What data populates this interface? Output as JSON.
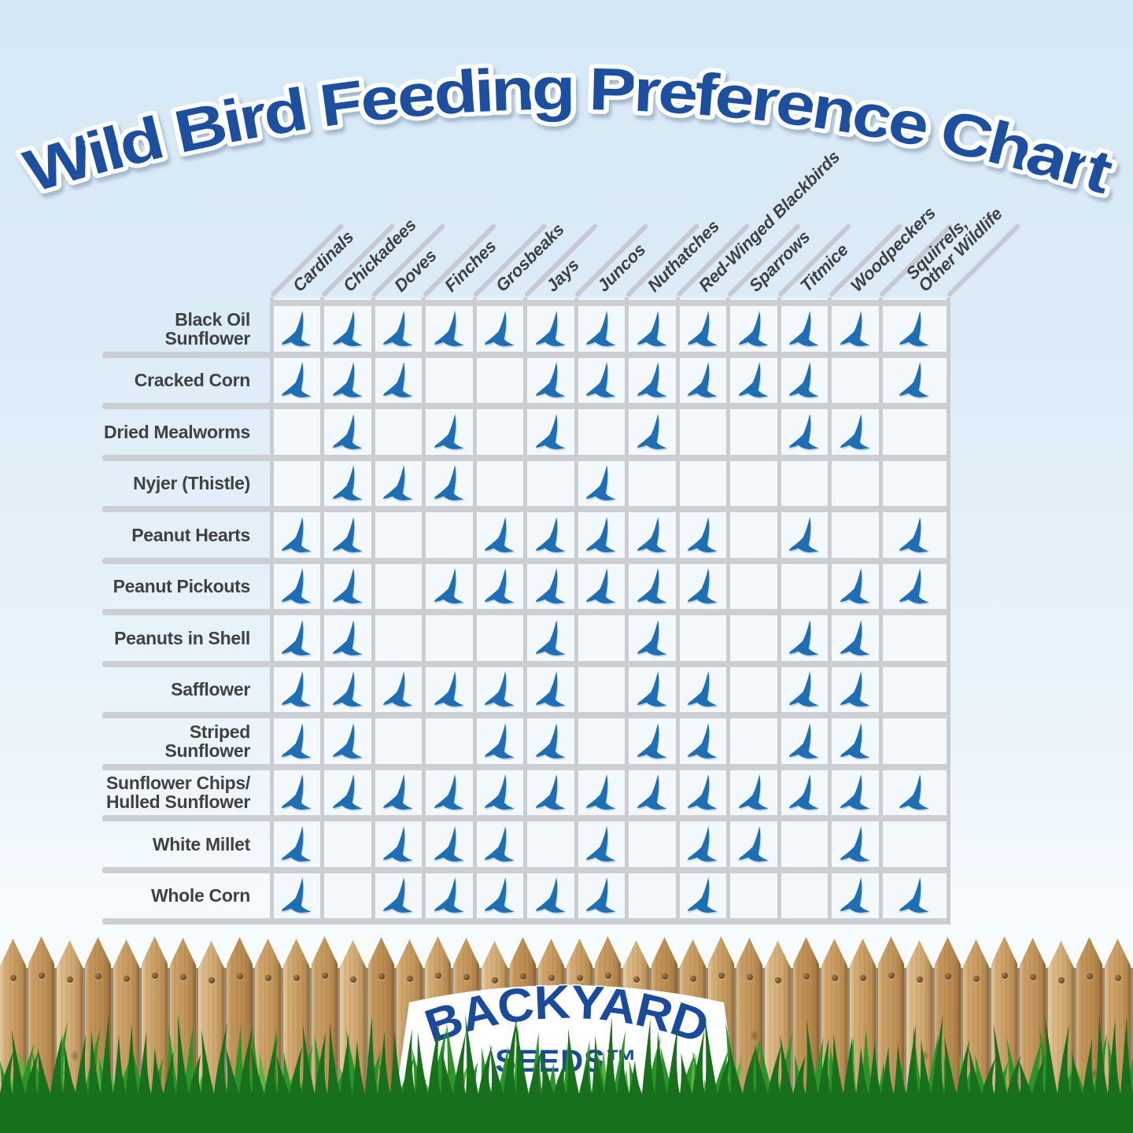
{
  "title": "Wild Bird Feeding Preference Chart",
  "logo": {
    "name": "BACKYARD",
    "sub": "SEEDS™"
  },
  "marker_icon": "bird-icon",
  "colors": {
    "title_blue": "#1b4f9f",
    "bird_blue": "#1d6eb4",
    "grid_line": "#c9cdd2",
    "cell_bg": "#f2f8fc",
    "label_text": "#3f4143",
    "logo_blue": "#1a4a9c",
    "grass_front": "#17701b",
    "grass_mid": "#2d9527",
    "grass_back": "#5cb33e",
    "wood_light": "#dcb983",
    "wood_dark": "#b5884e"
  },
  "chart_data": {
    "type": "table",
    "title": "Wild Bird Feeding Preference Chart",
    "marker": "bird-icon",
    "legend_position": "none",
    "columns": [
      "Cardinals",
      "Chickadees",
      "Doves",
      "Finches",
      "Grosbeaks",
      "Jays",
      "Juncos",
      "Nuthatches",
      "Red-Winged Blackbirds",
      "Sparrows",
      "Titmice",
      "Woodpeckers",
      "Squirrels,\nOther Wildlife"
    ],
    "rows": [
      {
        "label": "Black Oil Sunflower",
        "values": [
          1,
          1,
          1,
          1,
          1,
          1,
          1,
          1,
          1,
          1,
          1,
          1,
          1
        ]
      },
      {
        "label": "Cracked Corn",
        "values": [
          1,
          1,
          1,
          0,
          0,
          1,
          1,
          1,
          1,
          1,
          1,
          0,
          1
        ]
      },
      {
        "label": "Dried Mealworms",
        "values": [
          0,
          1,
          0,
          1,
          0,
          1,
          0,
          1,
          0,
          0,
          1,
          1,
          0
        ]
      },
      {
        "label": "Nyjer (Thistle)",
        "values": [
          0,
          1,
          1,
          1,
          0,
          0,
          1,
          0,
          0,
          0,
          0,
          0,
          0
        ]
      },
      {
        "label": "Peanut Hearts",
        "values": [
          1,
          1,
          0,
          0,
          1,
          1,
          1,
          1,
          1,
          0,
          1,
          0,
          1
        ]
      },
      {
        "label": "Peanut Pickouts",
        "values": [
          1,
          1,
          0,
          1,
          1,
          1,
          1,
          1,
          1,
          0,
          0,
          1,
          1
        ]
      },
      {
        "label": "Peanuts in Shell",
        "values": [
          1,
          1,
          0,
          0,
          0,
          1,
          0,
          1,
          0,
          0,
          1,
          1,
          0
        ]
      },
      {
        "label": "Safflower",
        "values": [
          1,
          1,
          1,
          1,
          1,
          1,
          0,
          1,
          1,
          0,
          1,
          1,
          0
        ]
      },
      {
        "label": "Striped Sunflower",
        "values": [
          1,
          1,
          0,
          0,
          1,
          1,
          0,
          1,
          1,
          0,
          1,
          1,
          0
        ]
      },
      {
        "label": "Sunflower Chips/\nHulled Sunflower",
        "values": [
          1,
          1,
          1,
          1,
          1,
          1,
          1,
          1,
          1,
          1,
          1,
          1,
          1
        ]
      },
      {
        "label": "White Millet",
        "values": [
          1,
          0,
          1,
          1,
          1,
          0,
          1,
          0,
          1,
          1,
          0,
          1,
          0
        ]
      },
      {
        "label": "Whole Corn",
        "values": [
          1,
          0,
          1,
          1,
          1,
          1,
          1,
          0,
          1,
          0,
          0,
          1,
          1
        ]
      }
    ]
  }
}
